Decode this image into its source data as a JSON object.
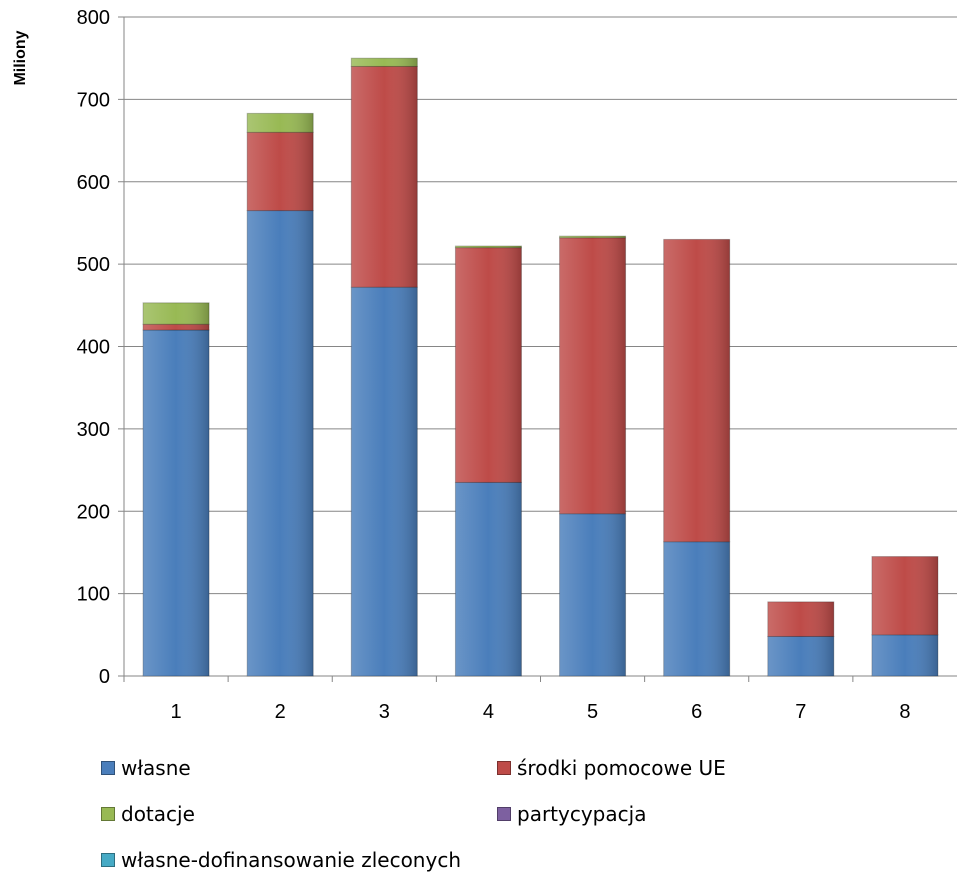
{
  "chart_data": {
    "type": "bar",
    "stacked": true,
    "categories": [
      "1",
      "2",
      "3",
      "4",
      "5",
      "6",
      "7",
      "8"
    ],
    "ylabel": "Miliony",
    "ylim": [
      0,
      800
    ],
    "yticks": [
      0,
      100,
      200,
      300,
      400,
      500,
      600,
      700,
      800
    ],
    "grid": true,
    "legend_position": "bottom",
    "series": [
      {
        "name": "własne",
        "color": "#4a7ebb",
        "values": [
          420,
          565,
          472,
          235,
          197,
          163,
          48,
          50
        ]
      },
      {
        "name": "środki pomocowe UE",
        "color": "#be4b48",
        "values": [
          7,
          95,
          268,
          285,
          335,
          367,
          42,
          95
        ]
      },
      {
        "name": "dotacje",
        "color": "#98b954",
        "values": [
          26,
          23,
          10,
          2,
          2,
          0,
          0,
          0
        ]
      },
      {
        "name": "partycypacja",
        "color": "#7d60a0",
        "values": [
          0,
          0,
          0,
          0,
          0,
          0,
          0,
          0
        ]
      },
      {
        "name": "własne-dofinansowanie zleconych",
        "color": "#46aac5",
        "values": [
          0,
          0,
          0,
          0,
          0,
          0,
          0,
          0
        ]
      }
    ]
  }
}
